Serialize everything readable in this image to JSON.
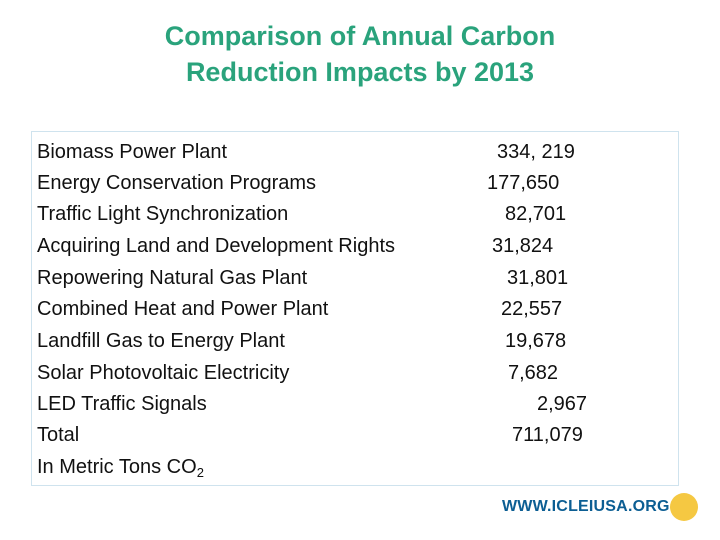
{
  "title": {
    "line1": "Comparison of Annual Carbon",
    "line2": "Reduction Impacts by 2013"
  },
  "rows": [
    {
      "label": "Biomass Power Plant",
      "value": "334, 219"
    },
    {
      "label": "Energy Conservation Programs",
      "value": "177,650"
    },
    {
      "label": "Traffic Light Synchronization",
      "value": "82,701"
    },
    {
      "label": "Acquiring Land and Development Rights",
      "value": "31,824"
    },
    {
      "label": "Repowering Natural Gas Plant",
      "value": "31,801"
    },
    {
      "label": "Combined Heat and Power Plant",
      "value": "22,557"
    },
    {
      "label": "Landfill Gas to Energy Plant",
      "value": "19,678"
    },
    {
      "label": "Solar Photovoltaic Electricity",
      "value": "7,682"
    },
    {
      "label": "LED Traffic Signals",
      "value": "2,967"
    },
    {
      "label": "Total",
      "value": "711,079"
    }
  ],
  "units_note": {
    "text": "In Metric Tons CO",
    "subscript": "2"
  },
  "footer": {
    "url": "WWW.ICLEIUSA.ORG",
    "logo_icon": "sun-logo-icon"
  },
  "colors": {
    "title": "#2aa37c",
    "footer": "#0c5e93",
    "logo": "#f5c842",
    "border": "#cfe3ee"
  }
}
